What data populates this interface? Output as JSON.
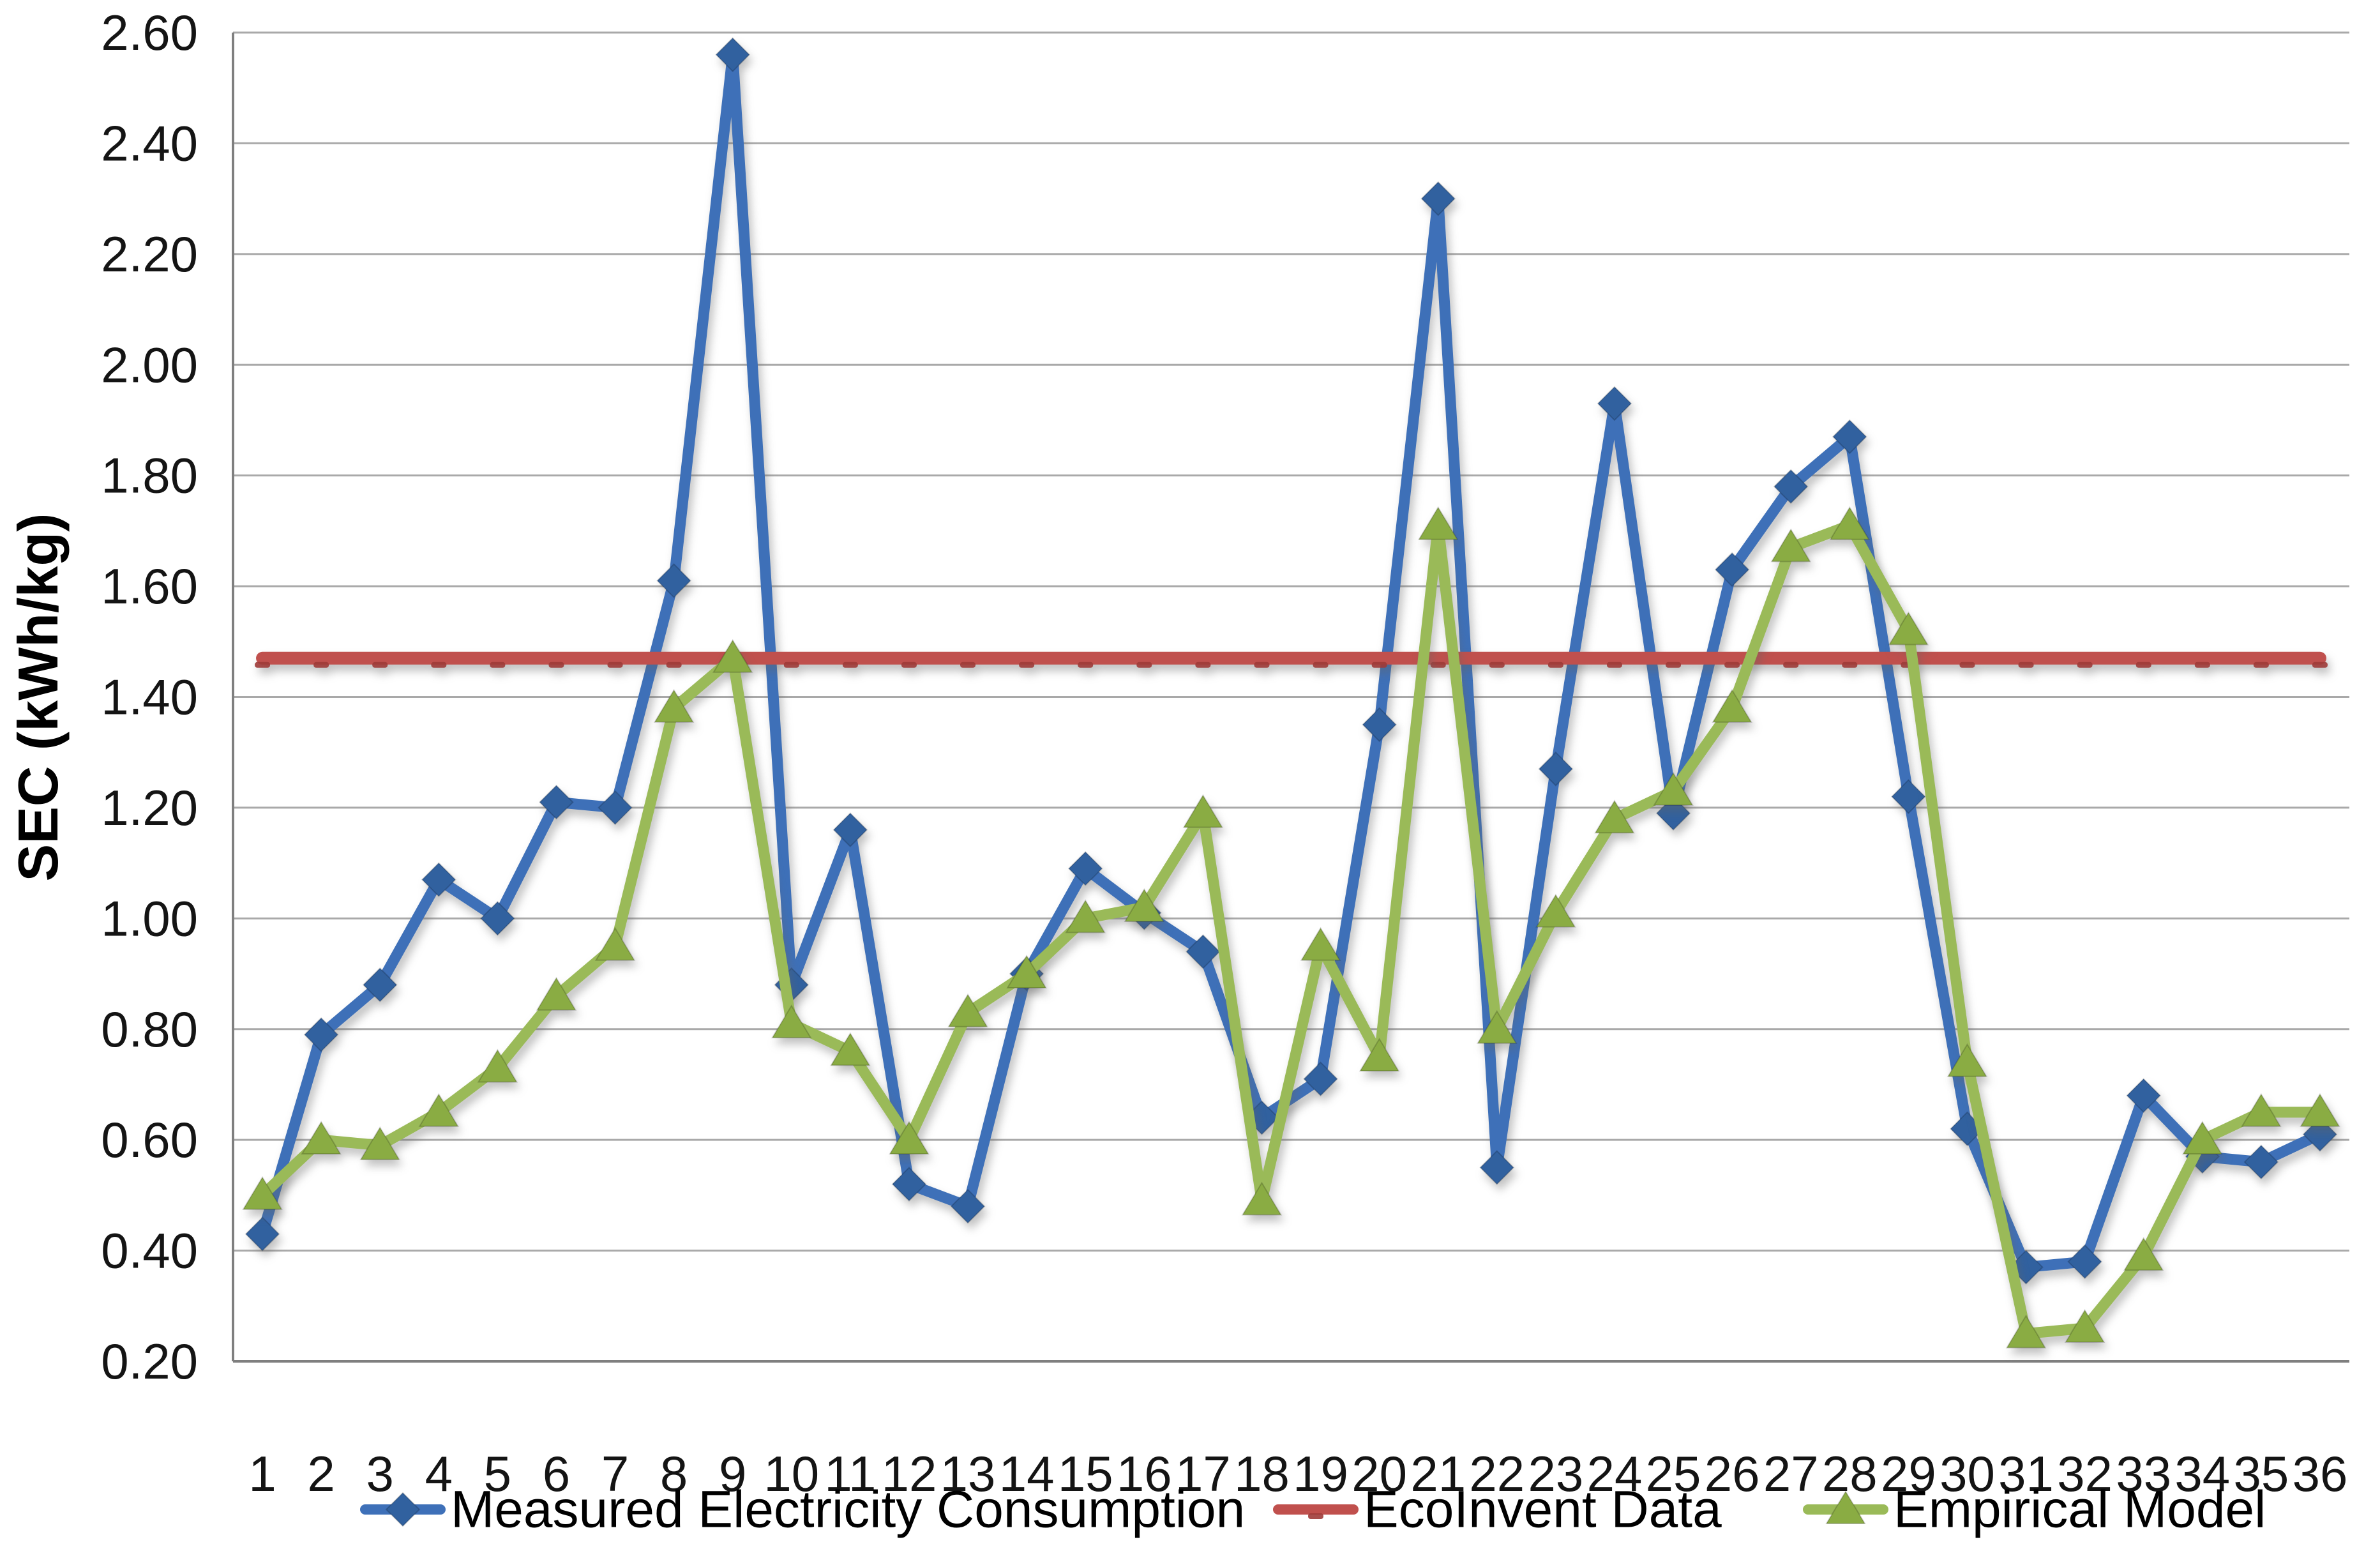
{
  "chart_data": {
    "type": "line",
    "title": "",
    "xlabel": "",
    "ylabel": "SEC (kWh/kg)",
    "ylim": [
      0.2,
      2.6
    ],
    "ytick_step": 0.2,
    "ytick_labels": [
      "0.20",
      "0.40",
      "0.60",
      "0.80",
      "1.00",
      "1.20",
      "1.40",
      "1.60",
      "1.80",
      "2.00",
      "2.20",
      "2.40",
      "2.60"
    ],
    "categories": [
      "1",
      "2",
      "3",
      "4",
      "5",
      "6",
      "7",
      "8",
      "9",
      "10",
      "11",
      "12",
      "13",
      "14",
      "15",
      "16",
      "17",
      "18",
      "19",
      "20",
      "21",
      "22",
      "23",
      "24",
      "25",
      "26",
      "27",
      "28",
      "29",
      "30",
      "31",
      "32",
      "33",
      "34",
      "35",
      "36"
    ],
    "grid": "horizontal-only",
    "legend_position": "bottom",
    "background_color": "#ffffff",
    "gridline_color": "#a9a9a9",
    "axis_color": "#7f7f7f",
    "text_color": "#141414",
    "series": [
      {
        "name": "Measured Electricity Consumption",
        "color": "#3e70b8",
        "marker": "diamond",
        "marker_color": "#31619f",
        "values": [
          0.43,
          0.79,
          0.88,
          1.07,
          1.0,
          1.21,
          1.2,
          1.61,
          2.56,
          0.88,
          1.16,
          0.52,
          0.48,
          0.9,
          1.09,
          1.01,
          0.94,
          0.64,
          0.71,
          1.35,
          2.3,
          0.55,
          1.27,
          1.93,
          1.19,
          1.63,
          1.78,
          1.87,
          1.22,
          0.62,
          0.37,
          0.38,
          0.68,
          0.57,
          0.56,
          0.61
        ]
      },
      {
        "name": "EcoInvent Data",
        "color": "#c0504d",
        "marker": "dash",
        "marker_color": "#9e3b38",
        "values": [
          1.47,
          1.47,
          1.47,
          1.47,
          1.47,
          1.47,
          1.47,
          1.47,
          1.47,
          1.47,
          1.47,
          1.47,
          1.47,
          1.47,
          1.47,
          1.47,
          1.47,
          1.47,
          1.47,
          1.47,
          1.47,
          1.47,
          1.47,
          1.47,
          1.47,
          1.47,
          1.47,
          1.47,
          1.47,
          1.47,
          1.47,
          1.47,
          1.47,
          1.47,
          1.47,
          1.47
        ]
      },
      {
        "name": "Empirical Model",
        "color": "#9aba58",
        "marker": "triangle",
        "marker_color": "#8aac43",
        "values": [
          0.5,
          0.6,
          0.59,
          0.65,
          0.73,
          0.86,
          0.95,
          1.38,
          1.47,
          0.81,
          0.76,
          0.6,
          0.83,
          0.9,
          1.0,
          1.02,
          1.19,
          0.49,
          0.95,
          0.75,
          1.71,
          0.8,
          1.01,
          1.18,
          1.23,
          1.38,
          1.67,
          1.71,
          1.52,
          0.74,
          0.25,
          0.26,
          0.39,
          0.6,
          0.65,
          0.65
        ]
      }
    ]
  }
}
